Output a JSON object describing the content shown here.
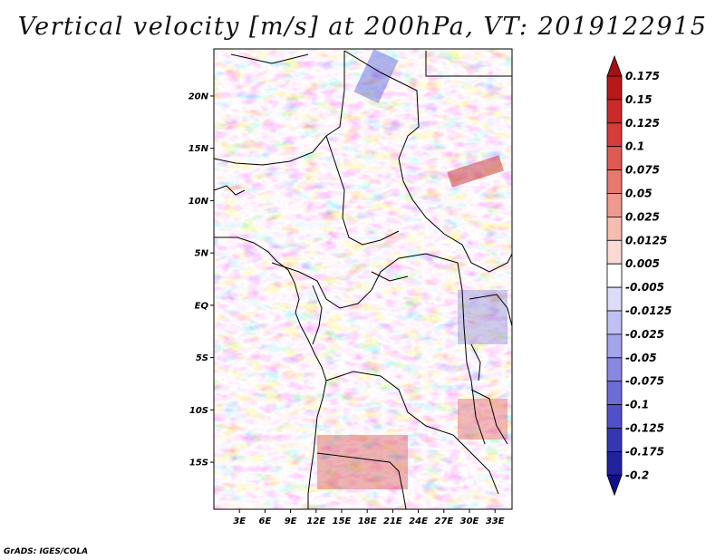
{
  "title": "Vertical velocity [m/s] at 200hPa, VT: 2019122915",
  "credit": "GrADS: IGES/COLA",
  "map": {
    "lat_ticks": [
      "20N",
      "15N",
      "10N",
      "5N",
      "EQ",
      "5S",
      "10S",
      "15S"
    ],
    "lon_ticks": [
      "3E",
      "6E",
      "9E",
      "12E",
      "15E",
      "18E",
      "21E",
      "24E",
      "27E",
      "30E",
      "33E"
    ],
    "lat_values": [
      20,
      15,
      10,
      5,
      0,
      -5,
      -10,
      -15
    ],
    "lon_values": [
      3,
      6,
      9,
      12,
      15,
      18,
      21,
      24,
      27,
      30,
      33
    ],
    "lon_range": [
      0,
      35
    ],
    "lat_range": [
      -19.5,
      24.5
    ]
  },
  "colorbar": {
    "labels": [
      "0.175",
      "0.15",
      "0.125",
      "0.1",
      "0.075",
      "0.05",
      "0.025",
      "0.0125",
      "0.005",
      "-0.005",
      "-0.0125",
      "-0.025",
      "-0.05",
      "-0.075",
      "-0.1",
      "-0.125",
      "-0.175",
      "-0.2"
    ],
    "colors": [
      "#a50f15",
      "#b8181c",
      "#cb2a2a",
      "#d63c3c",
      "#e05a55",
      "#e8796f",
      "#ef9a8e",
      "#f5bcb0",
      "#fadad2",
      "#ffffff",
      "#dcdcf8",
      "#c0c0f2",
      "#a4a4ea",
      "#8888e0",
      "#6c6cd6",
      "#5050c8",
      "#3636b4",
      "#22229e",
      "#10108a"
    ]
  }
}
